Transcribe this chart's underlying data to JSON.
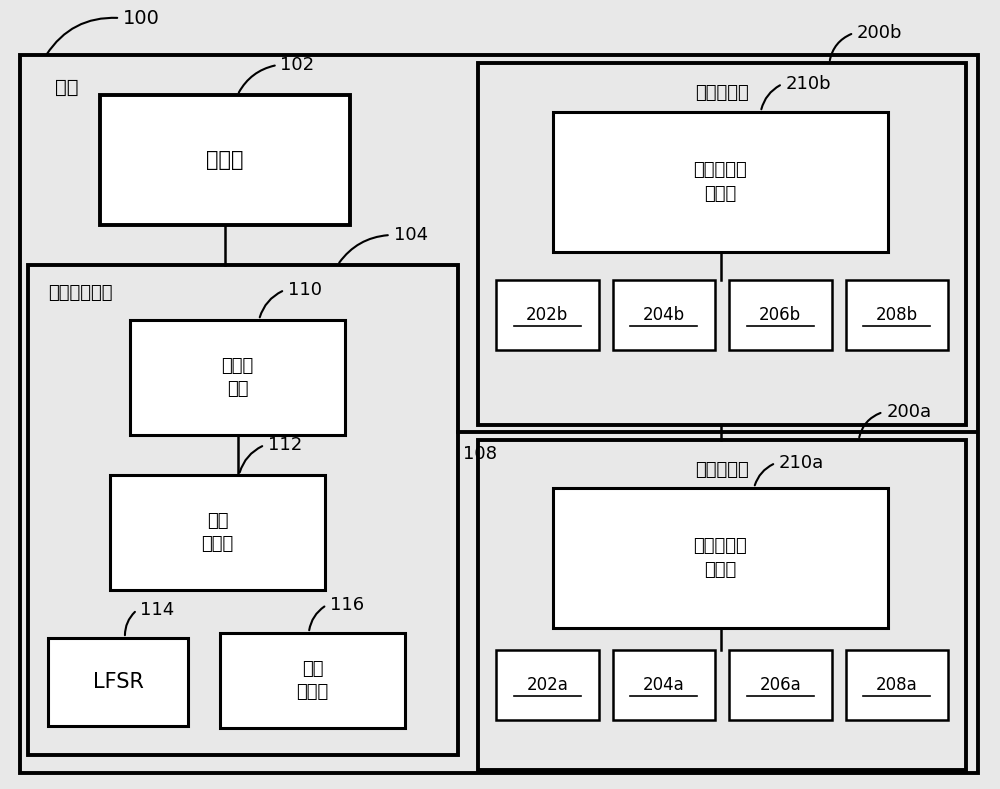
{
  "bg_color": "#e8e8e8",
  "white": "#ffffff",
  "black": "#000000",
  "system_label": "系统",
  "system_ref": "100",
  "processor_label": "处理器",
  "processor_ref": "102",
  "mem_ctrl_label": "存储器控制器",
  "mem_ctrl_ref": "104",
  "ctrl_logic_label": "控制器\n逻辑",
  "ctrl_logic_ref": "110",
  "phase_interp_label": "相位\n插值器",
  "phase_interp_ref": "112",
  "lfsr_label": "LFSR",
  "lfsr_ref": "114",
  "train_reg_label": "训练\n寄存器",
  "train_reg_ref": "116",
  "bus_ref": "108",
  "mem_mod_b_label": "存储器模块",
  "mem_mod_b_ref": "200b",
  "mem_mod_ctrl_b_label": "存储器模块\n控制器",
  "mem_mod_ctrl_b_ref": "210b",
  "mem_chips_b": [
    "202b",
    "204b",
    "206b",
    "208b"
  ],
  "mem_mod_a_label": "存储器模块",
  "mem_mod_a_ref": "200a",
  "mem_mod_ctrl_a_label": "存储器模块\n控制器",
  "mem_mod_ctrl_a_ref": "210a",
  "mem_chips_a": [
    "202a",
    "204a",
    "206a",
    "208a"
  ]
}
